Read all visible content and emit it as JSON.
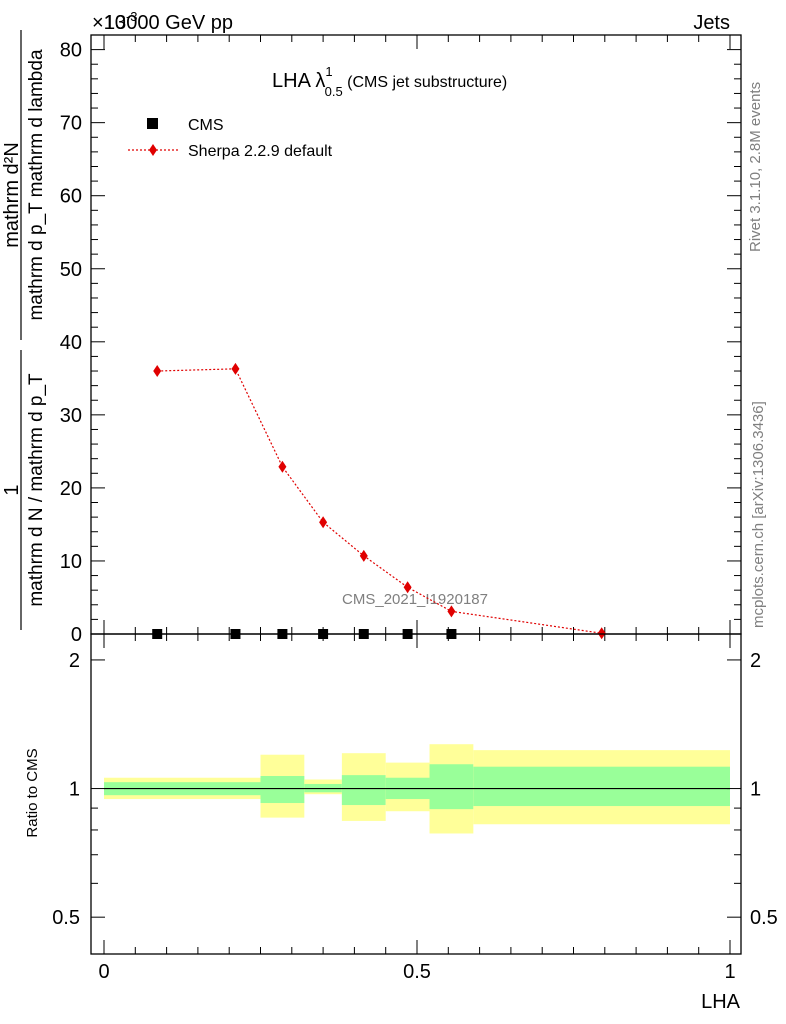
{
  "header": {
    "left_label": "13000 GeV pp",
    "right_label": "Jets",
    "multiplier": "×10",
    "multiplier_exp": "-3"
  },
  "side_labels": {
    "rivet": "Rivet 3.1.10,  2.8M events",
    "mcplots": "mcplots.cern.ch [arXiv:1306.3436]"
  },
  "watermark": "CMS_2021_I1920187",
  "colors": {
    "mc": "#e00000",
    "band_inner": "#99ff99",
    "band_outer": "#ffff99"
  },
  "chart_data": [
    {
      "type": "scatter",
      "title": "LHA",
      "title_superscript": "1",
      "title_subscript": "0.5",
      "title_suffix": "(CMS jet substructure)",
      "ylabel_numerator": "mathrm d²N",
      "ylabel_denominator": "mathrm d p_T mathrm d lambda",
      "ylabel_prefix_num": "1",
      "ylabel_prefix_den": "mathrm d N / mathrm d p_T",
      "xlim": [
        0,
        1
      ],
      "ylim": [
        0,
        82
      ],
      "y_ticks": [
        "0",
        "10",
        "20",
        "30",
        "40",
        "50",
        "60",
        "70",
        "80"
      ],
      "legend": [
        {
          "name": "CMS",
          "marker": "square"
        },
        {
          "name": "Sherpa 2.2.9 default",
          "marker": "diamond"
        }
      ],
      "series": [
        {
          "name": "CMS",
          "x": [
            0.085,
            0.21,
            0.285,
            0.35,
            0.415,
            0.485,
            0.555
          ],
          "y": [
            0,
            0,
            0,
            0,
            0,
            0,
            0
          ]
        },
        {
          "name": "Sherpa 2.2.9 default",
          "x": [
            0.085,
            0.21,
            0.285,
            0.35,
            0.415,
            0.485,
            0.555,
            0.795
          ],
          "y": [
            36.0,
            36.3,
            22.9,
            15.3,
            10.7,
            6.4,
            3.1,
            0.1
          ]
        }
      ]
    },
    {
      "type": "area",
      "ylabel": "Ratio to CMS",
      "xlabel": "LHA",
      "x_ticks": [
        "0",
        "0.5",
        "1"
      ],
      "y_ticks": [
        "0.5",
        "1",
        "2"
      ],
      "ylim": [
        0.41,
        2.3
      ],
      "yscale": "log",
      "reference": 1.0,
      "bins": [
        {
          "lo": 0.0,
          "hi": 0.25,
          "inner": [
            0.965,
            1.035
          ],
          "outer": [
            0.945,
            1.06
          ]
        },
        {
          "lo": 0.25,
          "hi": 0.32,
          "inner": [
            0.925,
            1.07
          ],
          "outer": [
            0.855,
            1.2
          ]
        },
        {
          "lo": 0.32,
          "hi": 0.38,
          "inner": [
            0.98,
            1.025
          ],
          "outer": [
            0.97,
            1.05
          ]
        },
        {
          "lo": 0.38,
          "hi": 0.45,
          "inner": [
            0.915,
            1.075
          ],
          "outer": [
            0.84,
            1.21
          ]
        },
        {
          "lo": 0.45,
          "hi": 0.52,
          "inner": [
            0.945,
            1.06
          ],
          "outer": [
            0.885,
            1.15
          ]
        },
        {
          "lo": 0.52,
          "hi": 0.59,
          "inner": [
            0.895,
            1.14
          ],
          "outer": [
            0.785,
            1.27
          ]
        },
        {
          "lo": 0.59,
          "hi": 1.0,
          "inner": [
            0.91,
            1.125
          ],
          "outer": [
            0.825,
            1.23
          ]
        }
      ]
    }
  ]
}
